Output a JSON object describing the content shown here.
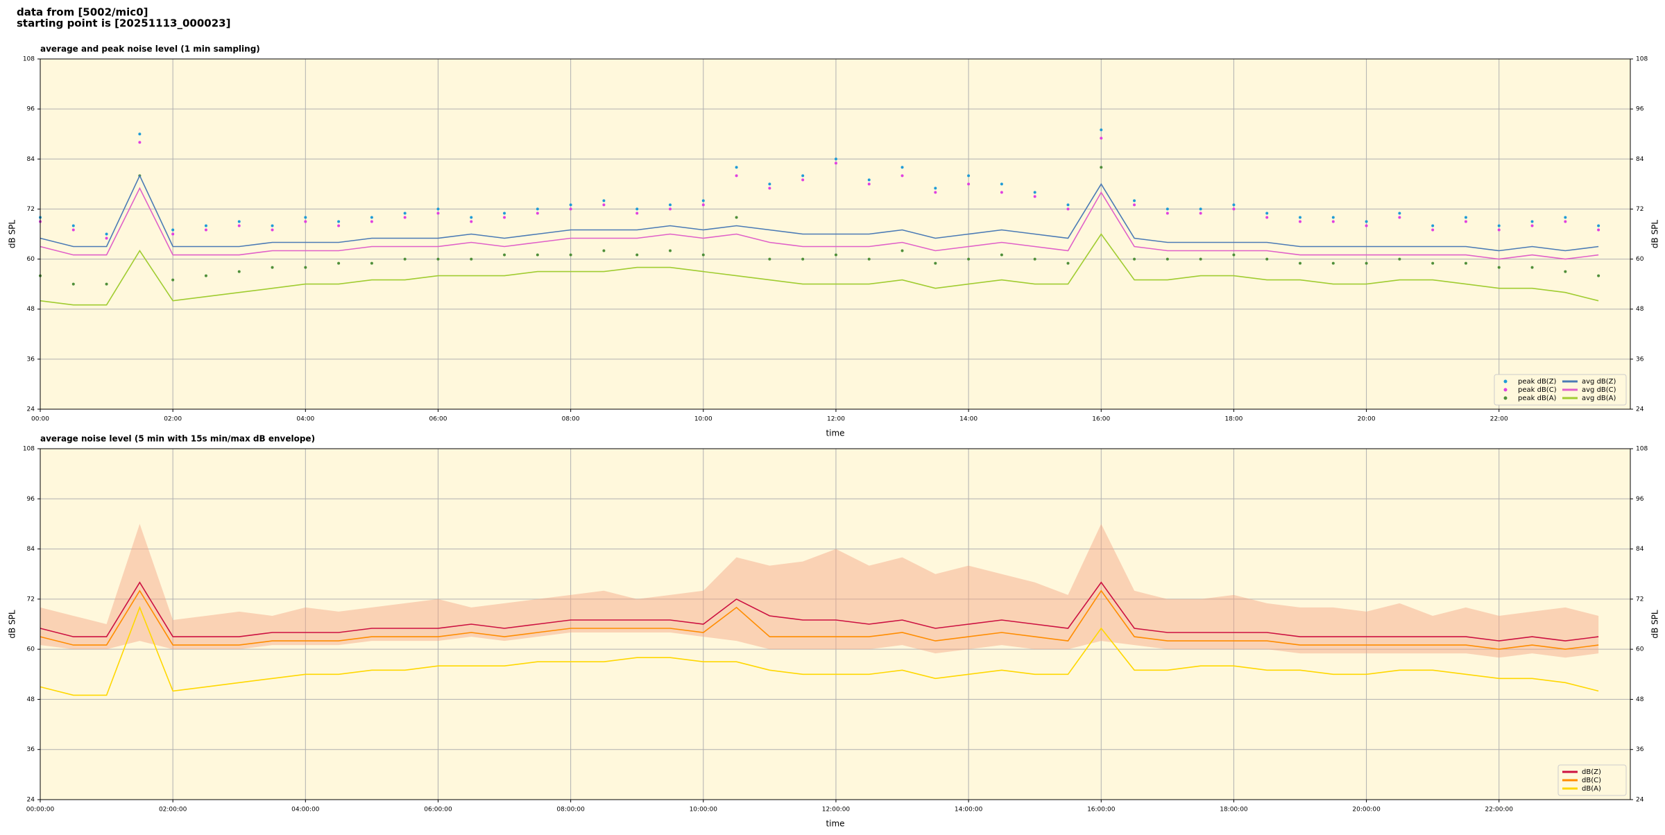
{
  "header": {
    "lines": [
      "data from [5002/mic0]",
      "starting point is [20251113_000023]"
    ]
  },
  "chart_data": [
    {
      "type": "line",
      "title": "average and peak noise level (1 min sampling)",
      "xlabel": "time",
      "ylabel": "dB SPL",
      "xlim": [
        0,
        23.98
      ],
      "ylim": [
        24,
        108
      ],
      "yticks": [
        24,
        36,
        48,
        60,
        72,
        84,
        96,
        108
      ],
      "xticks": [
        {
          "value": 0,
          "label": "00:00"
        },
        {
          "value": 2,
          "label": "02:00"
        },
        {
          "value": 4,
          "label": "04:00"
        },
        {
          "value": 6,
          "label": "06:00"
        },
        {
          "value": 8,
          "label": "08:00"
        },
        {
          "value": 10,
          "label": "10:00"
        },
        {
          "value": 12,
          "label": "12:00"
        },
        {
          "value": 14,
          "label": "14:00"
        },
        {
          "value": 16,
          "label": "16:00"
        },
        {
          "value": 18,
          "label": "18:00"
        },
        {
          "value": 20,
          "label": "20:00"
        },
        {
          "value": 22,
          "label": "22:00"
        }
      ],
      "grid": true,
      "background": "#fff8dc",
      "legend": "lower right",
      "x": [
        0,
        0.5,
        1,
        1.5,
        2,
        2.5,
        3,
        3.5,
        4,
        4.5,
        5,
        5.5,
        6,
        6.5,
        7,
        7.5,
        8,
        8.5,
        9,
        9.5,
        10,
        10.5,
        11,
        11.5,
        12,
        12.5,
        13,
        13.5,
        14,
        14.5,
        15,
        15.5,
        16,
        16.5,
        17,
        17.5,
        18,
        18.5,
        19,
        19.5,
        20,
        20.5,
        21,
        21.5,
        22,
        22.5,
        23,
        23.5
      ],
      "series": [
        {
          "name": "peak dB(Z)",
          "mark": "dot",
          "color": "#1f9bd6",
          "values": [
            70,
            68,
            66,
            90,
            67,
            68,
            69,
            68,
            70,
            69,
            70,
            71,
            72,
            70,
            71,
            72,
            73,
            74,
            72,
            73,
            74,
            82,
            78,
            80,
            84,
            79,
            82,
            77,
            80,
            78,
            76,
            73,
            91,
            74,
            72,
            72,
            73,
            71,
            70,
            70,
            69,
            71,
            68,
            70,
            68,
            69,
            70,
            68
          ]
        },
        {
          "name": "peak dB(C)",
          "mark": "dot",
          "color": "#e040e0",
          "values": [
            69,
            67,
            65,
            88,
            66,
            67,
            68,
            67,
            69,
            68,
            69,
            70,
            71,
            69,
            70,
            71,
            72,
            73,
            71,
            72,
            73,
            80,
            77,
            79,
            83,
            78,
            80,
            76,
            78,
            76,
            75,
            72,
            89,
            73,
            71,
            71,
            72,
            70,
            69,
            69,
            68,
            70,
            67,
            69,
            67,
            68,
            69,
            67
          ]
        },
        {
          "name": "peak dB(A)",
          "mark": "dot",
          "color": "#4f8f3a",
          "values": [
            56,
            54,
            54,
            80,
            55,
            56,
            57,
            58,
            58,
            59,
            59,
            60,
            60,
            60,
            61,
            61,
            61,
            62,
            61,
            62,
            61,
            70,
            60,
            60,
            61,
            60,
            62,
            59,
            60,
            61,
            60,
            59,
            82,
            60,
            60,
            60,
            61,
            60,
            59,
            59,
            59,
            60,
            59,
            59,
            58,
            58,
            57,
            56
          ]
        },
        {
          "name": "avg dB(Z)",
          "mark": "line",
          "color": "#4a7ab5",
          "values": [
            65,
            63,
            63,
            80,
            63,
            63,
            63,
            64,
            64,
            64,
            65,
            65,
            65,
            66,
            65,
            66,
            67,
            67,
            67,
            68,
            67,
            68,
            67,
            66,
            66,
            66,
            67,
            65,
            66,
            67,
            66,
            65,
            78,
            65,
            64,
            64,
            64,
            64,
            63,
            63,
            63,
            63,
            63,
            63,
            62,
            63,
            62,
            63
          ]
        },
        {
          "name": "avg dB(C)",
          "mark": "line",
          "color": "#e060c8",
          "values": [
            63,
            61,
            61,
            77,
            61,
            61,
            61,
            62,
            62,
            62,
            63,
            63,
            63,
            64,
            63,
            64,
            65,
            65,
            65,
            66,
            65,
            66,
            64,
            63,
            63,
            63,
            64,
            62,
            63,
            64,
            63,
            62,
            76,
            63,
            62,
            62,
            62,
            62,
            61,
            61,
            61,
            61,
            61,
            61,
            60,
            61,
            60,
            61
          ]
        },
        {
          "name": "avg dB(A)",
          "mark": "line",
          "color": "#a0cc30",
          "values": [
            50,
            49,
            49,
            62,
            50,
            51,
            52,
            53,
            54,
            54,
            55,
            55,
            56,
            56,
            56,
            57,
            57,
            57,
            58,
            58,
            57,
            56,
            55,
            54,
            54,
            54,
            55,
            53,
            54,
            55,
            54,
            54,
            66,
            55,
            55,
            56,
            56,
            55,
            55,
            54,
            54,
            55,
            55,
            54,
            53,
            53,
            52,
            50
          ]
        }
      ]
    },
    {
      "type": "line",
      "title": "average noise level (5 min with 15s min/max dB envelope)",
      "xlabel": "time",
      "ylabel": "dB SPL",
      "xlim": [
        0,
        23.98
      ],
      "ylim": [
        24,
        108
      ],
      "yticks": [
        24,
        36,
        48,
        60,
        72,
        84,
        96,
        108
      ],
      "xticks": [
        {
          "value": 0,
          "label": "00:00:00"
        },
        {
          "value": 2,
          "label": "02:00:00"
        },
        {
          "value": 4,
          "label": "04:00:00"
        },
        {
          "value": 6,
          "label": "06:00:00"
        },
        {
          "value": 8,
          "label": "08:00:00"
        },
        {
          "value": 10,
          "label": "10:00:00"
        },
        {
          "value": 12,
          "label": "12:00:00"
        },
        {
          "value": 14,
          "label": "14:00:00"
        },
        {
          "value": 16,
          "label": "16:00:00"
        },
        {
          "value": 18,
          "label": "18:00:00"
        },
        {
          "value": 20,
          "label": "20:00:00"
        },
        {
          "value": 22,
          "label": "22:00:00"
        }
      ],
      "grid": true,
      "background": "#fff8dc",
      "legend": "lower right",
      "x": [
        0,
        0.5,
        1,
        1.5,
        2,
        2.5,
        3,
        3.5,
        4,
        4.5,
        5,
        5.5,
        6,
        6.5,
        7,
        7.5,
        8,
        8.5,
        9,
        9.5,
        10,
        10.5,
        11,
        11.5,
        12,
        12.5,
        13,
        13.5,
        14,
        14.5,
        15,
        15.5,
        16,
        16.5,
        17,
        17.5,
        18,
        18.5,
        19,
        19.5,
        20,
        20.5,
        21,
        21.5,
        22,
        22.5,
        23,
        23.5
      ],
      "envelope": {
        "color": "#f4a582",
        "high": [
          70,
          68,
          66,
          90,
          67,
          68,
          69,
          68,
          70,
          69,
          70,
          71,
          72,
          70,
          71,
          72,
          73,
          74,
          72,
          73,
          74,
          82,
          80,
          81,
          84,
          80,
          82,
          78,
          80,
          78,
          76,
          73,
          90,
          74,
          72,
          72,
          73,
          71,
          70,
          70,
          69,
          71,
          68,
          70,
          68,
          69,
          70,
          68
        ],
        "low": [
          61,
          60,
          60,
          62,
          60,
          60,
          60,
          61,
          61,
          61,
          62,
          62,
          62,
          63,
          62,
          63,
          64,
          64,
          64,
          64,
          63,
          62,
          60,
          60,
          60,
          60,
          61,
          59,
          60,
          61,
          60,
          60,
          62,
          61,
          60,
          60,
          60,
          60,
          59,
          59,
          59,
          59,
          59,
          59,
          58,
          59,
          58,
          59
        ]
      },
      "series": [
        {
          "name": "dB(Z)",
          "mark": "line",
          "color": "#cc1040",
          "values": [
            65,
            63,
            63,
            76,
            63,
            63,
            63,
            64,
            64,
            64,
            65,
            65,
            65,
            66,
            65,
            66,
            67,
            67,
            67,
            67,
            66,
            72,
            68,
            67,
            67,
            66,
            67,
            65,
            66,
            67,
            66,
            65,
            76,
            65,
            64,
            64,
            64,
            64,
            63,
            63,
            63,
            63,
            63,
            63,
            62,
            63,
            62,
            63
          ]
        },
        {
          "name": "dB(C)",
          "mark": "line",
          "color": "#ff8c00",
          "values": [
            63,
            61,
            61,
            74,
            61,
            61,
            61,
            62,
            62,
            62,
            63,
            63,
            63,
            64,
            63,
            64,
            65,
            65,
            65,
            65,
            64,
            70,
            63,
            63,
            63,
            63,
            64,
            62,
            63,
            64,
            63,
            62,
            74,
            63,
            62,
            62,
            62,
            62,
            61,
            61,
            61,
            61,
            61,
            61,
            60,
            61,
            60,
            61
          ]
        },
        {
          "name": "dB(A)",
          "mark": "line",
          "color": "#ffd700",
          "values": [
            51,
            49,
            49,
            70,
            50,
            51,
            52,
            53,
            54,
            54,
            55,
            55,
            56,
            56,
            56,
            57,
            57,
            57,
            58,
            58,
            57,
            57,
            55,
            54,
            54,
            54,
            55,
            53,
            54,
            55,
            54,
            54,
            65,
            55,
            55,
            56,
            56,
            55,
            55,
            54,
            54,
            55,
            55,
            54,
            53,
            53,
            52,
            50
          ]
        }
      ]
    }
  ]
}
